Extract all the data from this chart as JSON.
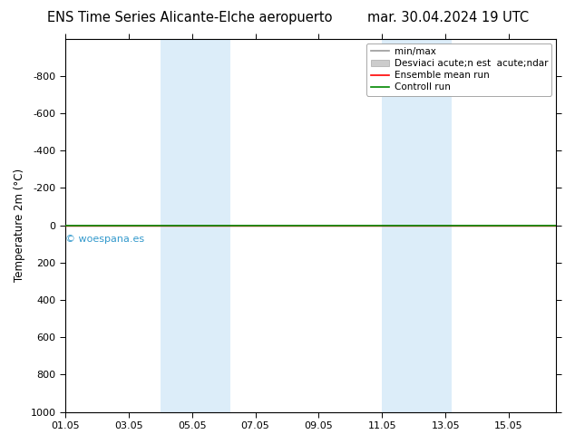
{
  "title_left": "ENS Time Series Alicante-Elche aeropuerto",
  "title_right": "mar. 30.04.2024 19 UTC",
  "ylabel": "Temperature 2m (°C)",
  "watermark": "© woespana.es",
  "xtick_labels": [
    "01.05",
    "03.05",
    "05.05",
    "07.05",
    "09.05",
    "11.05",
    "13.05",
    "15.05"
  ],
  "xtick_positions": [
    0,
    2,
    4,
    6,
    8,
    10,
    12,
    14
  ],
  "ylim_top": -1000,
  "ylim_bottom": 1000,
  "ytick_positions": [
    -800,
    -600,
    -400,
    -200,
    0,
    200,
    400,
    600,
    800,
    1000
  ],
  "ytick_labels": [
    "-800",
    "-600",
    "-400",
    "-200",
    "0",
    "200",
    "400",
    "600",
    "800",
    "1000"
  ],
  "shaded_bands": [
    {
      "x_start": 3.0,
      "x_end": 5.2
    },
    {
      "x_start": 10.0,
      "x_end": 12.2
    }
  ],
  "shade_color": "#d6eaf8",
  "shade_alpha": 0.85,
  "minmax_line_color": "#999999",
  "std_patch_color": "#cccccc",
  "ensemble_mean_color": "#ff0000",
  "control_run_color": "#008800",
  "line_y": 0,
  "background_color": "#ffffff",
  "legend_entry_minmax": "min/max",
  "legend_entry_std": "Desviaci acute;n est  acute;ndar",
  "legend_entry_mean": "Ensemble mean run",
  "legend_entry_ctrl": "Controll run",
  "title_fontsize": 10.5,
  "axis_fontsize": 8.5,
  "tick_fontsize": 8,
  "watermark_fontsize": 8,
  "xlim_min": 0,
  "xlim_max": 15.5
}
